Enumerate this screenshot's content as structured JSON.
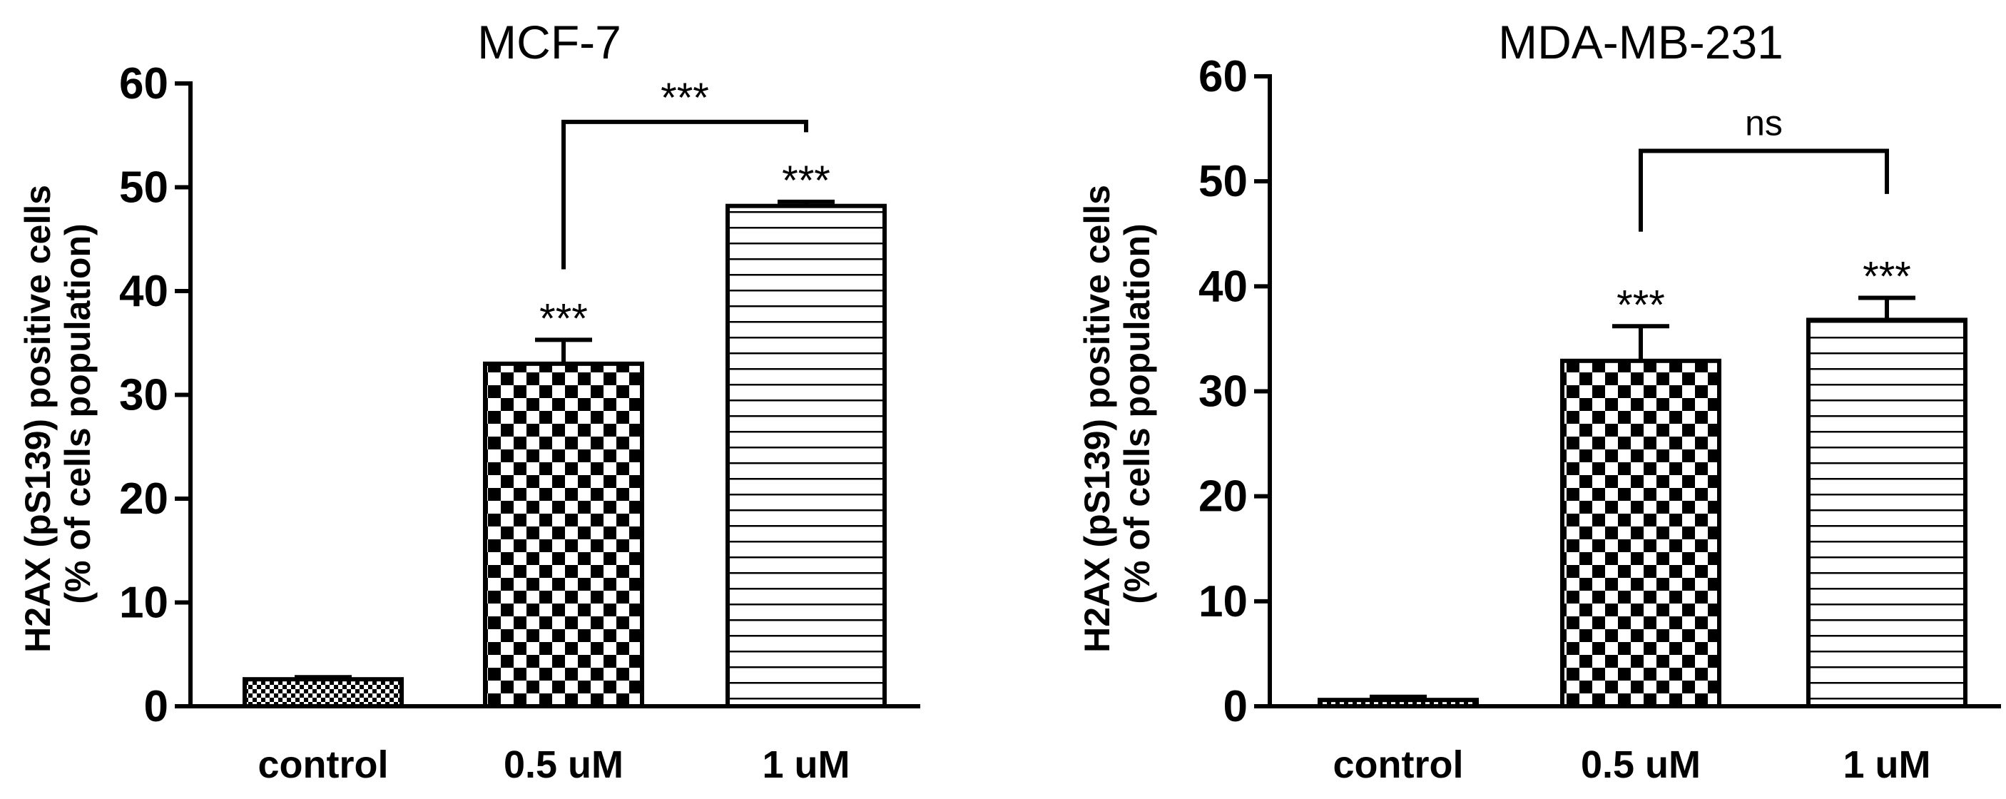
{
  "chart_data": [
    {
      "type": "bar",
      "title": "MCF-7",
      "ylabel_lines": [
        "H2AX (pS139) positive cells",
        "(% of cells population)"
      ],
      "categories": [
        "control",
        "0.5 uM",
        "1 uM"
      ],
      "values": [
        2.6,
        33.0,
        48.2
      ],
      "errors": [
        0.2,
        2.3,
        0.4
      ],
      "patterns": [
        "checker-fine",
        "checker",
        "horizontal-lines"
      ],
      "annotations": [
        "",
        "***",
        "***"
      ],
      "yticks": [
        "0",
        "10",
        "20",
        "30",
        "40",
        "50",
        "60"
      ],
      "ylim": [
        0,
        60
      ],
      "comparison": {
        "from": 1,
        "to": 2,
        "label": "***"
      }
    },
    {
      "type": "bar",
      "title": "MDA-MB-231",
      "ylabel_lines": [
        "H2AX (pS139) positive cells",
        "(% of cells population)"
      ],
      "categories": [
        "control",
        "0.5 uM",
        "1 uM"
      ],
      "values": [
        0.6,
        32.9,
        36.8
      ],
      "errors": [
        0.3,
        3.3,
        2.1
      ],
      "patterns": [
        "checker-fine",
        "checker",
        "horizontal-lines"
      ],
      "annotations": [
        "",
        "***",
        "***"
      ],
      "yticks": [
        "0",
        "10",
        "20",
        "30",
        "40",
        "50",
        "60"
      ],
      "ylim": [
        0,
        60
      ],
      "comparison": {
        "from": 1,
        "to": 2,
        "label": "ns"
      }
    }
  ]
}
